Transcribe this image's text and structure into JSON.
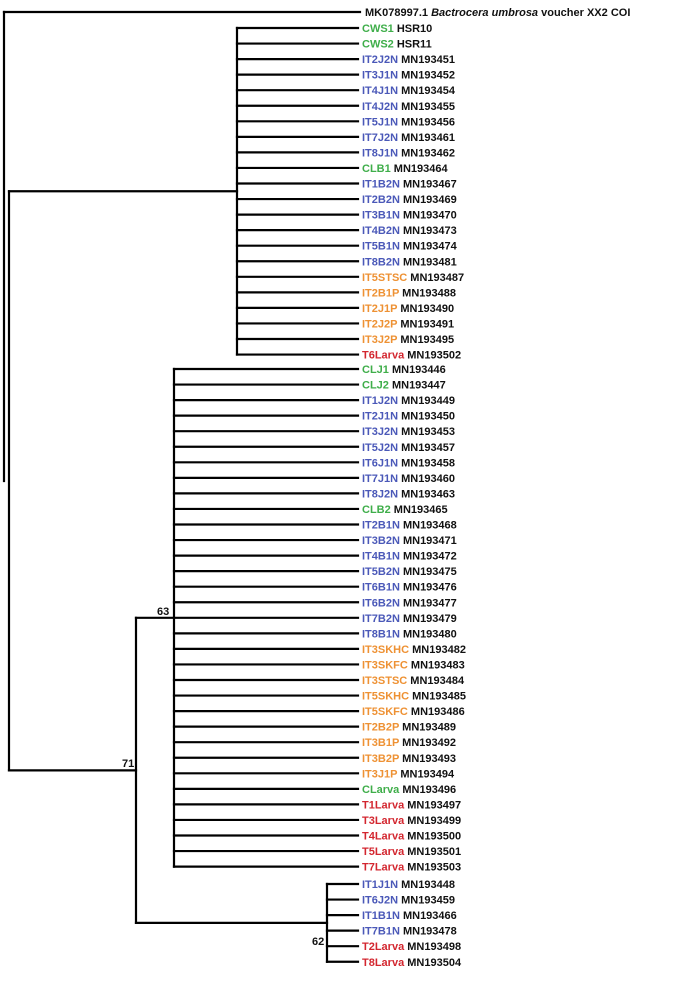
{
  "colors": {
    "green": "#3fae4a",
    "blue": "#4a58b8",
    "orange": "#ee9133",
    "red": "#d3262f",
    "black": "#111111"
  },
  "outgroup": {
    "accession": "MK078997.1",
    "species": "Bactrocera umbrosa",
    "suffix": "voucher XX2 COI"
  },
  "clade_a": [
    {
      "code": "CWS1",
      "acc": "HSR10",
      "group": "green"
    },
    {
      "code": "CWS2",
      "acc": "HSR11",
      "group": "green"
    },
    {
      "code": "IT2J2N",
      "acc": "MN193451",
      "group": "blue"
    },
    {
      "code": "IT3J1N",
      "acc": "MN193452",
      "group": "blue"
    },
    {
      "code": "IT4J1N",
      "acc": "MN193454",
      "group": "blue"
    },
    {
      "code": "IT4J2N",
      "acc": "MN193455",
      "group": "blue"
    },
    {
      "code": "IT5J1N",
      "acc": "MN193456",
      "group": "blue"
    },
    {
      "code": "IT7J2N",
      "acc": "MN193461",
      "group": "blue"
    },
    {
      "code": "IT8J1N",
      "acc": "MN193462",
      "group": "blue"
    },
    {
      "code": "CLB1",
      "acc": "MN193464",
      "group": "green"
    },
    {
      "code": "IT1B2N",
      "acc": "MN193467",
      "group": "blue"
    },
    {
      "code": "IT2B2N",
      "acc": "MN193469",
      "group": "blue"
    },
    {
      "code": "IT3B1N",
      "acc": "MN193470",
      "group": "blue"
    },
    {
      "code": "IT4B2N",
      "acc": "MN193473",
      "group": "blue"
    },
    {
      "code": "IT5B1N",
      "acc": "MN193474",
      "group": "blue"
    },
    {
      "code": "IT8B2N",
      "acc": "MN193481",
      "group": "blue"
    },
    {
      "code": "IT5STSC",
      "acc": "MN193487",
      "group": "orange"
    },
    {
      "code": "IT2B1P",
      "acc": "MN193488",
      "group": "orange"
    },
    {
      "code": "IT2J1P",
      "acc": "MN193490",
      "group": "orange"
    },
    {
      "code": "IT2J2P",
      "acc": "MN193491",
      "group": "orange"
    },
    {
      "code": "IT3J2P",
      "acc": "MN193495",
      "group": "orange"
    },
    {
      "code": "T6Larva",
      "acc": "MN193502",
      "group": "red"
    }
  ],
  "clade_b": [
    {
      "code": "CLJ1",
      "acc": "MN193446",
      "group": "green"
    },
    {
      "code": "CLJ2",
      "acc": "MN193447",
      "group": "green"
    },
    {
      "code": "IT1J2N",
      "acc": "MN193449",
      "group": "blue"
    },
    {
      "code": "IT2J1N",
      "acc": "MN193450",
      "group": "blue"
    },
    {
      "code": "IT3J2N",
      "acc": "MN193453",
      "group": "blue"
    },
    {
      "code": "IT5J2N",
      "acc": "MN193457",
      "group": "blue"
    },
    {
      "code": "IT6J1N",
      "acc": "MN193458",
      "group": "blue"
    },
    {
      "code": "IT7J1N",
      "acc": "MN193460",
      "group": "blue"
    },
    {
      "code": "IT8J2N",
      "acc": "MN193463",
      "group": "blue"
    },
    {
      "code": "CLB2",
      "acc": "MN193465",
      "group": "green"
    },
    {
      "code": "IT2B1N",
      "acc": "MN193468",
      "group": "blue"
    },
    {
      "code": "IT3B2N",
      "acc": "MN193471",
      "group": "blue"
    },
    {
      "code": "IT4B1N",
      "acc": "MN193472",
      "group": "blue"
    },
    {
      "code": "IT5B2N",
      "acc": "MN193475",
      "group": "blue"
    },
    {
      "code": "IT6B1N",
      "acc": "MN193476",
      "group": "blue"
    },
    {
      "code": "IT6B2N",
      "acc": "MN193477",
      "group": "blue"
    },
    {
      "code": "IT7B2N",
      "acc": "MN193479",
      "group": "blue"
    },
    {
      "code": "IT8B1N",
      "acc": "MN193480",
      "group": "blue"
    },
    {
      "code": "IT3SKHC",
      "acc": "MN193482",
      "group": "orange"
    },
    {
      "code": "IT3SKFC",
      "acc": "MN193483",
      "group": "orange"
    },
    {
      "code": "IT3STSC",
      "acc": "MN193484",
      "group": "orange"
    },
    {
      "code": "IT5SKHC",
      "acc": "MN193485",
      "group": "orange"
    },
    {
      "code": "IT5SKFC",
      "acc": "MN193486",
      "group": "orange"
    },
    {
      "code": "IT2B2P",
      "acc": "MN193489",
      "group": "orange"
    },
    {
      "code": "IT3B1P",
      "acc": "MN193492",
      "group": "orange"
    },
    {
      "code": "IT3B2P",
      "acc": "MN193493",
      "group": "orange"
    },
    {
      "code": "IT3J1P",
      "acc": "MN193494",
      "group": "orange"
    },
    {
      "code": "CLarva",
      "acc": "MN193496",
      "group": "green"
    },
    {
      "code": "T1Larva",
      "acc": "MN193497",
      "group": "red"
    },
    {
      "code": "T3Larva",
      "acc": "MN193499",
      "group": "red"
    },
    {
      "code": "T4Larva",
      "acc": "MN193500",
      "group": "red"
    },
    {
      "code": "T5Larva",
      "acc": "MN193501",
      "group": "red"
    },
    {
      "code": "T7Larva",
      "acc": "MN193503",
      "group": "red"
    }
  ],
  "clade_c": [
    {
      "code": "IT1J1N",
      "acc": "MN193448",
      "group": "blue"
    },
    {
      "code": "IT6J2N",
      "acc": "MN193459",
      "group": "blue"
    },
    {
      "code": "IT1B1N",
      "acc": "MN193466",
      "group": "blue"
    },
    {
      "code": "IT7B1N",
      "acc": "MN193478",
      "group": "blue"
    },
    {
      "code": "T2Larva",
      "acc": "MN193498",
      "group": "red"
    },
    {
      "code": "T8Larva",
      "acc": "MN193504",
      "group": "red"
    }
  ],
  "bootstrap": {
    "node_63": "63",
    "node_71": "71",
    "node_62": "62"
  }
}
